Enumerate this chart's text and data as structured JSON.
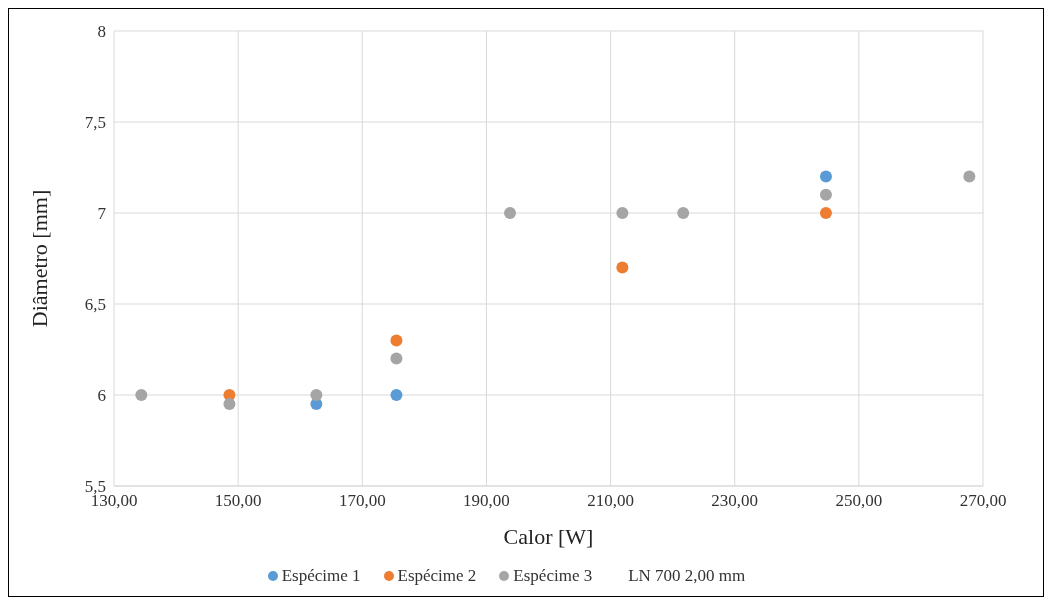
{
  "chart_data": {
    "type": "scatter",
    "xlabel": "Calor [W]",
    "ylabel": "Diâmetro  [mm]",
    "annotations": [
      "LN 700 2,00 mm"
    ],
    "xlim": [
      130,
      270
    ],
    "xticks": [
      {
        "value": 130,
        "label": "130,00"
      },
      {
        "value": 150,
        "label": "150,00"
      },
      {
        "value": 170,
        "label": "170,00"
      },
      {
        "value": 190,
        "label": "190,00"
      },
      {
        "value": 210,
        "label": "210,00"
      },
      {
        "value": 230,
        "label": "230,00"
      },
      {
        "value": 250,
        "label": "250,00"
      },
      {
        "value": 270,
        "label": "270,00"
      }
    ],
    "ylim": [
      5.5,
      8
    ],
    "yticks": [
      {
        "value": 5.5,
        "label": "5,5"
      },
      6,
      {
        "value": 6.5,
        "label": "6,5"
      },
      7,
      {
        "value": 7.5,
        "label": "7,5"
      },
      8
    ],
    "grid": true,
    "legend": "bottom",
    "marker": "circle",
    "series": [
      {
        "name": "Espécime 1",
        "color": "#5b9bd5",
        "x": [
          162.6,
          175.5,
          244.7
        ],
        "values": [
          5.95,
          6.0,
          7.2
        ]
      },
      {
        "name": "Espécime 2",
        "color": "#ed7d31",
        "x": [
          148.6,
          175.5,
          211.9,
          244.7
        ],
        "values": [
          6.0,
          6.3,
          6.7,
          7.0
        ]
      },
      {
        "name": "Espécime 3",
        "color": "#a5a5a5",
        "x": [
          134.4,
          148.6,
          162.6,
          175.5,
          193.8,
          211.9,
          221.7,
          244.7,
          267.8
        ],
        "values": [
          6.0,
          5.95,
          6.0,
          6.2,
          7.0,
          7.0,
          7.0,
          7.1,
          7.2
        ]
      }
    ]
  }
}
